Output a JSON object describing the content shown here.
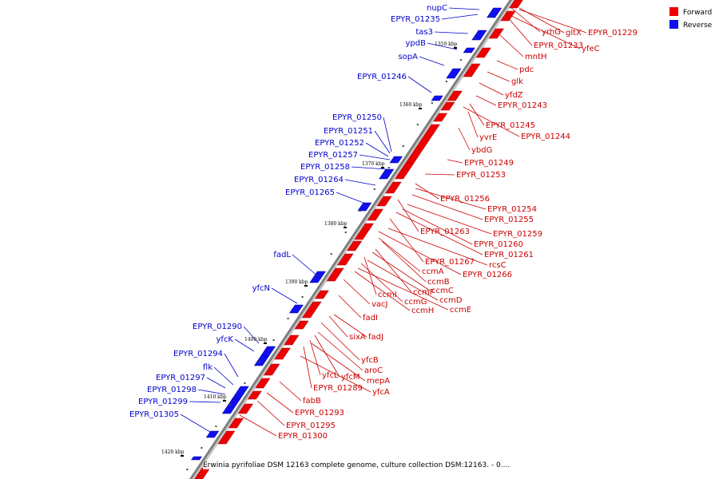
{
  "colors": {
    "forward": "#ee0000",
    "reverse": "#1010ee",
    "forward_text": "#cc0000",
    "reverse_text": "#0000cc",
    "backbone": "#808080"
  },
  "legend": {
    "forward": "Forward",
    "reverse": "Reverse"
  },
  "caption": "Erwinia pyrifoliae DSM 12163 complete genome, culture collection DSM:12163. - 0....",
  "ticks": [
    "1350 kbp",
    "1360 kbp",
    "1370 kbp",
    "1380 kbp",
    "1390 kbp",
    "1400 kbp",
    "1410 kbp",
    "1420 kbp"
  ],
  "forward_labels": [
    "gltX",
    "EPYR_01229",
    "yrhG",
    "EPYR_01233",
    "yfeC",
    "mntH",
    "pdc",
    "glk",
    "yfdZ",
    "EPYR_01243",
    "EPYR_01245",
    "EPYR_01244",
    "yvrE",
    "ybdG",
    "EPYR_01249",
    "EPYR_01253",
    "EPYR_01256",
    "EPYR_01254",
    "EPYR_01255",
    "EPYR_01263",
    "EPYR_01259",
    "EPYR_01260",
    "EPYR_01261",
    "EPYR_01267",
    "rcsC",
    "EPYR_01266",
    "ccmA",
    "ccmB",
    "ccmF",
    "ccmC",
    "ccmI",
    "ccmD",
    "ccmG",
    "ccmE",
    "ccmH",
    "vacJ",
    "fadI",
    "sixA",
    "fadJ",
    "yfcB",
    "aroC",
    "yfcM",
    "yfcL",
    "mepA",
    "EPYR_01289",
    "yfcA",
    "fabB",
    "EPYR_01293",
    "EPYR_01295",
    "EPYR_01300"
  ],
  "reverse_labels": [
    "nupC",
    "EPYR_01235",
    "tas3",
    "ypdB",
    "sopA",
    "EPYR_01246",
    "EPYR_01250",
    "EPYR_01251",
    "EPYR_01252",
    "EPYR_01257",
    "EPYR_01258",
    "EPYR_01264",
    "EPYR_01265",
    "fadL",
    "yfcN",
    "EPYR_01290",
    "yfcK",
    "EPYR_01294",
    "flk",
    "EPYR_01297",
    "EPYR_01298",
    "EPYR_01299",
    "EPYR_01305"
  ]
}
